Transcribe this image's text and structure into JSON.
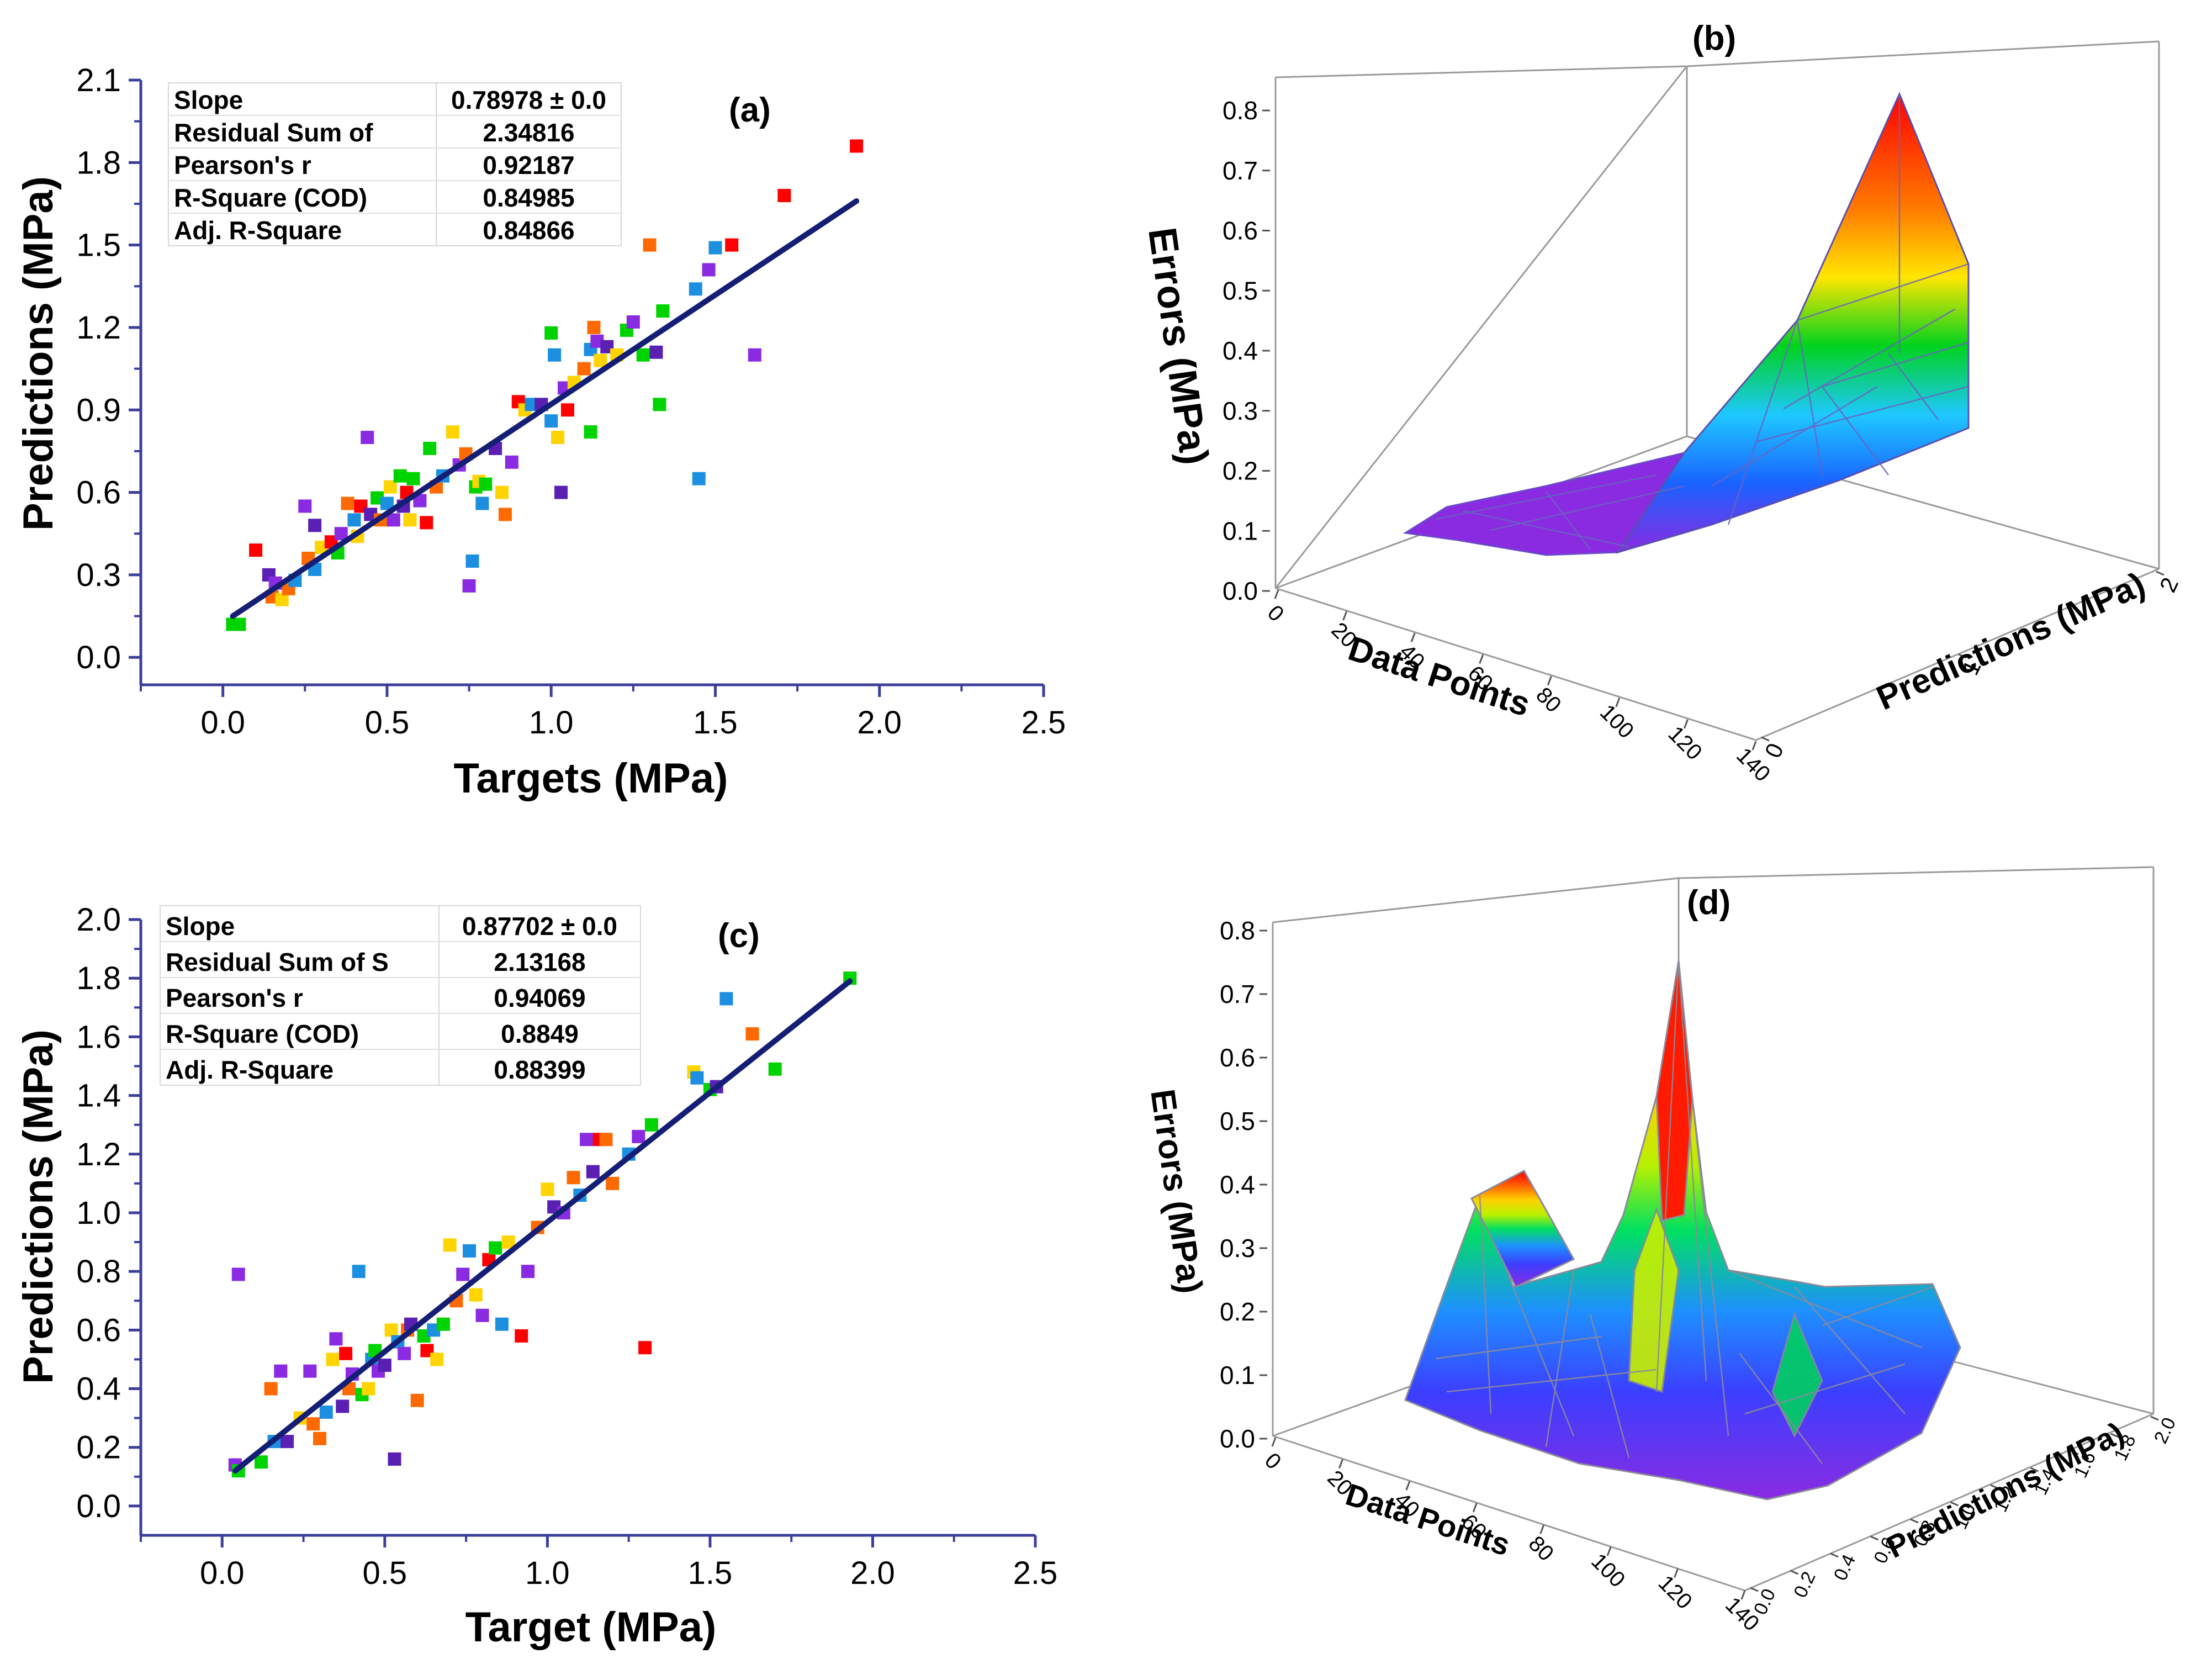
{
  "colors": {
    "axis": "#3b3f9a",
    "fit_line": "#141e74",
    "palette": [
      "#ff0000",
      "#ff6a00",
      "#ffd400",
      "#00d400",
      "#1c8fe0",
      "#8a2be2",
      "#5a1fb3"
    ]
  },
  "chart_data": [
    {
      "panel": "a",
      "type": "scatter",
      "label": "(a)",
      "xlabel": "Targets (MPa)",
      "ylabel": "Predictions (MPa)",
      "xlim": [
        -0.25,
        2.5
      ],
      "ylim": [
        -0.1,
        2.1
      ],
      "xticks": [
        0.0,
        0.5,
        1.0,
        1.5,
        2.0,
        2.5
      ],
      "xtick_labels": [
        "0.0",
        "0.5",
        "1.0",
        "1.5",
        "2.0",
        "2.5"
      ],
      "yticks": [
        0.0,
        0.3,
        0.6,
        0.9,
        1.2,
        1.5,
        1.8,
        2.1
      ],
      "ytick_labels": [
        "0.0",
        "0.3",
        "0.6",
        "0.9",
        "1.2",
        "1.5",
        "1.8",
        "2.1"
      ],
      "fit_line": {
        "x": [
          0.03,
          1.93
        ],
        "y": [
          0.15,
          1.66
        ]
      },
      "stats_table": [
        [
          "Slope",
          "0.78978 ± 0.0"
        ],
        [
          "Residual Sum of",
          "2.34816"
        ],
        [
          "Pearson's r",
          "0.92187"
        ],
        [
          "R-Square (COD)",
          "0.84985"
        ],
        [
          "Adj. R-Square",
          "0.84866"
        ]
      ],
      "points": [
        [
          0.03,
          0.12,
          3
        ],
        [
          0.05,
          0.12,
          3
        ],
        [
          0.1,
          0.39,
          0
        ],
        [
          0.14,
          0.3,
          6
        ],
        [
          0.15,
          0.22,
          1
        ],
        [
          0.16,
          0.27,
          5
        ],
        [
          0.18,
          0.21,
          2
        ],
        [
          0.2,
          0.25,
          1
        ],
        [
          0.22,
          0.28,
          4
        ],
        [
          0.25,
          0.55,
          5
        ],
        [
          0.26,
          0.36,
          1
        ],
        [
          0.28,
          0.32,
          4
        ],
        [
          0.28,
          0.48,
          6
        ],
        [
          0.3,
          0.4,
          2
        ],
        [
          0.33,
          0.42,
          0
        ],
        [
          0.35,
          0.38,
          3
        ],
        [
          0.36,
          0.45,
          5
        ],
        [
          0.38,
          0.56,
          1
        ],
        [
          0.4,
          0.5,
          4
        ],
        [
          0.41,
          0.44,
          2
        ],
        [
          0.42,
          0.55,
          0
        ],
        [
          0.44,
          0.8,
          5
        ],
        [
          0.45,
          0.52,
          6
        ],
        [
          0.47,
          0.58,
          3
        ],
        [
          0.48,
          0.5,
          1
        ],
        [
          0.5,
          0.56,
          4
        ],
        [
          0.51,
          0.62,
          2
        ],
        [
          0.52,
          0.5,
          5
        ],
        [
          0.54,
          0.66,
          3
        ],
        [
          0.55,
          0.55,
          6
        ],
        [
          0.56,
          0.6,
          0
        ],
        [
          0.57,
          0.5,
          2
        ],
        [
          0.58,
          0.65,
          3
        ],
        [
          0.6,
          0.57,
          5
        ],
        [
          0.62,
          0.49,
          0
        ],
        [
          0.63,
          0.76,
          3
        ],
        [
          0.65,
          0.62,
          1
        ],
        [
          0.67,
          0.66,
          4
        ],
        [
          0.7,
          0.82,
          2
        ],
        [
          0.72,
          0.7,
          5
        ],
        [
          0.74,
          0.74,
          1
        ],
        [
          0.75,
          0.26,
          5
        ],
        [
          0.76,
          0.35,
          4
        ],
        [
          0.77,
          0.62,
          3
        ],
        [
          0.78,
          0.64,
          2
        ],
        [
          0.79,
          0.56,
          4
        ],
        [
          0.8,
          0.63,
          3
        ],
        [
          0.83,
          0.76,
          6
        ],
        [
          0.85,
          0.6,
          2
        ],
        [
          0.86,
          0.52,
          1
        ],
        [
          0.88,
          0.71,
          5
        ],
        [
          0.9,
          0.93,
          0
        ],
        [
          0.92,
          0.9,
          2
        ],
        [
          0.94,
          0.92,
          4
        ],
        [
          0.97,
          0.92,
          6
        ],
        [
          1.0,
          0.86,
          4
        ],
        [
          1.0,
          1.18,
          3
        ],
        [
          1.01,
          1.1,
          4
        ],
        [
          1.02,
          0.8,
          2
        ],
        [
          1.03,
          0.6,
          6
        ],
        [
          1.04,
          0.98,
          5
        ],
        [
          1.05,
          0.9,
          0
        ],
        [
          1.07,
          1.0,
          2
        ],
        [
          1.1,
          1.05,
          1
        ],
        [
          1.12,
          1.12,
          4
        ],
        [
          1.12,
          0.82,
          3
        ],
        [
          1.13,
          1.2,
          1
        ],
        [
          1.14,
          1.15,
          5
        ],
        [
          1.15,
          1.08,
          2
        ],
        [
          1.17,
          1.13,
          6
        ],
        [
          1.2,
          1.1,
          2
        ],
        [
          1.23,
          1.19,
          3
        ],
        [
          1.25,
          1.22,
          5
        ],
        [
          1.28,
          1.1,
          3
        ],
        [
          1.3,
          1.5,
          1
        ],
        [
          1.32,
          1.11,
          6
        ],
        [
          1.33,
          0.92,
          3
        ],
        [
          1.34,
          1.26,
          3
        ],
        [
          1.44,
          1.34,
          4
        ],
        [
          1.45,
          0.65,
          4
        ],
        [
          1.48,
          1.41,
          5
        ],
        [
          1.5,
          1.49,
          4
        ],
        [
          1.55,
          1.5,
          0
        ],
        [
          1.62,
          1.1,
          5
        ],
        [
          1.71,
          1.68,
          0
        ],
        [
          1.93,
          1.86,
          0
        ]
      ]
    },
    {
      "panel": "b",
      "type": "surface3d",
      "label": "(b)",
      "zlabel": "Errors (MPa)",
      "xlabel": "Data Points",
      "ylabel": "Predictions (MPa)",
      "zticks": [
        0.0,
        0.1,
        0.2,
        0.3,
        0.4,
        0.5,
        0.6,
        0.7,
        0.8
      ],
      "ztick_labels": [
        "0.0",
        "0.1",
        "0.2",
        "0.3",
        "0.4",
        "0.5",
        "0.6",
        "0.7",
        "0.8"
      ],
      "xticks": [
        0,
        20,
        40,
        60,
        80,
        100,
        120,
        140
      ],
      "xtick_labels": [
        "0",
        "20",
        "40",
        "60",
        "80",
        "100",
        "120",
        "140"
      ],
      "yticks": [
        0,
        1,
        2
      ],
      "ytick_labels": [
        "0",
        "1",
        "2"
      ],
      "zlim": [
        0.0,
        0.8
      ],
      "peak_error": 0.82
    },
    {
      "panel": "c",
      "type": "scatter",
      "label": "(c)",
      "xlabel": "Target (MPa)",
      "ylabel": "Predictions (MPa)",
      "xlim": [
        -0.25,
        2.5
      ],
      "ylim": [
        -0.1,
        2.0
      ],
      "xticks": [
        0.0,
        0.5,
        1.0,
        1.5,
        2.0,
        2.5
      ],
      "xtick_labels": [
        "0.0",
        "0.5",
        "1.0",
        "1.5",
        "2.0",
        "2.5"
      ],
      "yticks": [
        0.0,
        0.2,
        0.4,
        0.6,
        0.8,
        1.0,
        1.2,
        1.4,
        1.6,
        1.8,
        2.0
      ],
      "ytick_labels": [
        "0.0",
        "0.2",
        "0.4",
        "0.6",
        "0.8",
        "1.0",
        "1.2",
        "1.4",
        "1.6",
        "1.8",
        "2.0"
      ],
      "fit_line": {
        "x": [
          0.04,
          1.93
        ],
        "y": [
          0.12,
          1.79
        ]
      },
      "stats_table": [
        [
          "Slope",
          "0.87702 ± 0.0"
        ],
        [
          "Residual Sum of S",
          "2.13168"
        ],
        [
          "Pearson's r",
          "0.94069"
        ],
        [
          "R-Square (COD)",
          "0.8849"
        ],
        [
          "Adj. R-Square",
          "0.88399"
        ]
      ],
      "points": [
        [
          0.04,
          0.14,
          5
        ],
        [
          0.05,
          0.79,
          5
        ],
        [
          0.05,
          0.12,
          3
        ],
        [
          0.12,
          0.15,
          3
        ],
        [
          0.15,
          0.4,
          1
        ],
        [
          0.16,
          0.22,
          4
        ],
        [
          0.18,
          0.46,
          5
        ],
        [
          0.2,
          0.22,
          6
        ],
        [
          0.24,
          0.3,
          2
        ],
        [
          0.27,
          0.46,
          5
        ],
        [
          0.28,
          0.28,
          1
        ],
        [
          0.3,
          0.23,
          1
        ],
        [
          0.32,
          0.32,
          4
        ],
        [
          0.34,
          0.5,
          2
        ],
        [
          0.35,
          0.57,
          5
        ],
        [
          0.37,
          0.34,
          6
        ],
        [
          0.38,
          0.52,
          0
        ],
        [
          0.39,
          0.4,
          1
        ],
        [
          0.4,
          0.45,
          5
        ],
        [
          0.42,
          0.8,
          4
        ],
        [
          0.43,
          0.38,
          3
        ],
        [
          0.45,
          0.4,
          2
        ],
        [
          0.46,
          0.5,
          4
        ],
        [
          0.47,
          0.53,
          3
        ],
        [
          0.48,
          0.46,
          5
        ],
        [
          0.5,
          0.48,
          6
        ],
        [
          0.52,
          0.6,
          2
        ],
        [
          0.53,
          0.16,
          6
        ],
        [
          0.54,
          0.56,
          4
        ],
        [
          0.56,
          0.52,
          5
        ],
        [
          0.57,
          0.6,
          1
        ],
        [
          0.58,
          0.62,
          6
        ],
        [
          0.6,
          0.36,
          1
        ],
        [
          0.62,
          0.58,
          3
        ],
        [
          0.63,
          0.53,
          0
        ],
        [
          0.65,
          0.6,
          4
        ],
        [
          0.66,
          0.5,
          2
        ],
        [
          0.68,
          0.62,
          3
        ],
        [
          0.7,
          0.89,
          2
        ],
        [
          0.72,
          0.7,
          1
        ],
        [
          0.74,
          0.79,
          5
        ],
        [
          0.76,
          0.87,
          4
        ],
        [
          0.78,
          0.72,
          2
        ],
        [
          0.8,
          0.65,
          5
        ],
        [
          0.82,
          0.84,
          0
        ],
        [
          0.84,
          0.88,
          3
        ],
        [
          0.86,
          0.62,
          4
        ],
        [
          0.88,
          0.9,
          2
        ],
        [
          0.92,
          0.58,
          0
        ],
        [
          0.94,
          0.8,
          5
        ],
        [
          0.97,
          0.95,
          1
        ],
        [
          1.0,
          1.08,
          2
        ],
        [
          1.02,
          1.02,
          6
        ],
        [
          1.05,
          1.0,
          5
        ],
        [
          1.08,
          1.12,
          1
        ],
        [
          1.1,
          1.06,
          4
        ],
        [
          1.12,
          1.25,
          5
        ],
        [
          1.14,
          1.14,
          6
        ],
        [
          1.16,
          1.25,
          0
        ],
        [
          1.18,
          1.25,
          1
        ],
        [
          1.2,
          1.1,
          1
        ],
        [
          1.25,
          1.2,
          4
        ],
        [
          1.28,
          1.26,
          5
        ],
        [
          1.3,
          0.54,
          0
        ],
        [
          1.32,
          1.3,
          3
        ],
        [
          1.45,
          1.48,
          2
        ],
        [
          1.46,
          1.46,
          4
        ],
        [
          1.5,
          1.42,
          3
        ],
        [
          1.52,
          1.43,
          6
        ],
        [
          1.55,
          1.73,
          4
        ],
        [
          1.63,
          1.61,
          1
        ],
        [
          1.7,
          1.49,
          3
        ],
        [
          1.93,
          1.8,
          3
        ]
      ]
    },
    {
      "panel": "d",
      "type": "surface3d",
      "label": "(d)",
      "zlabel": "Errors (MPa)",
      "xlabel": "Data Points",
      "ylabel": "Predictions (MPa)",
      "zticks": [
        0.0,
        0.1,
        0.2,
        0.3,
        0.4,
        0.5,
        0.6,
        0.7,
        0.8
      ],
      "ztick_labels": [
        "0.0",
        "0.1",
        "0.2",
        "0.3",
        "0.4",
        "0.5",
        "0.6",
        "0.7",
        "0.8"
      ],
      "xticks": [
        0,
        20,
        40,
        60,
        80,
        100,
        120,
        140
      ],
      "xtick_labels": [
        "0",
        "20",
        "40",
        "60",
        "80",
        "100",
        "120",
        "140"
      ],
      "yticks": [
        0.0,
        0.2,
        0.4,
        0.6,
        0.8,
        1.0,
        1.2,
        1.4,
        1.6,
        1.8,
        2.0
      ],
      "ytick_labels": [
        "0.0",
        "0.2",
        "0.4",
        "0.6",
        "0.8",
        "1.0",
        "1.2",
        "1.4",
        "1.6",
        "1.8",
        "2.0"
      ],
      "zlim": [
        0.0,
        0.8
      ],
      "peak_error": 0.74
    }
  ]
}
